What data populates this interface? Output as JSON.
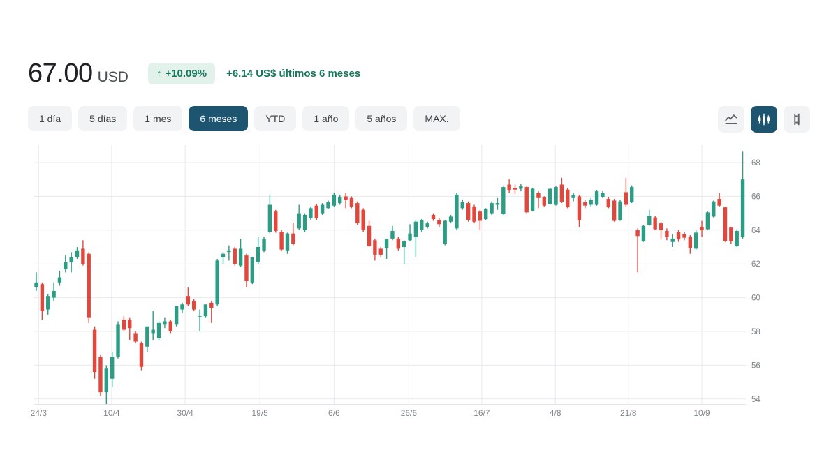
{
  "header": {
    "price": "67.00",
    "currency": "USD",
    "badge_arrow": "↑",
    "badge_change": "+10.09%",
    "change_text": "+6.14 US$ últimos 6 meses"
  },
  "range_tabs": [
    {
      "label": "1 día",
      "selected": false
    },
    {
      "label": "5 días",
      "selected": false
    },
    {
      "label": "1 mes",
      "selected": false
    },
    {
      "label": "6 meses",
      "selected": true
    },
    {
      "label": "YTD",
      "selected": false
    },
    {
      "label": "1 año",
      "selected": false
    },
    {
      "label": "5 años",
      "selected": false
    },
    {
      "label": "MÁX.",
      "selected": false
    }
  ],
  "chart_controls": [
    {
      "icon": "line-chart-icon",
      "selected": false
    },
    {
      "icon": "candlestick-chart-icon",
      "selected": true
    },
    {
      "icon": "ohlc-bars-icon",
      "selected": false
    }
  ],
  "colors": {
    "up": "#2d9c84",
    "down": "#e0483e",
    "grid": "#e8eaed",
    "axis_line": "#dadce0",
    "axis_text": "#80868b",
    "accent_selected": "#1d5470",
    "positive_text": "#16795c",
    "positive_bg": "#e3f1eb"
  },
  "chart_data": {
    "type": "candlestick",
    "unit": "USD",
    "period": "6 meses",
    "y_ticks": [
      54,
      56,
      58,
      60,
      62,
      64,
      66,
      68
    ],
    "y_range": [
      53.5,
      69.0
    ],
    "grid": true,
    "y_axis_position": "right",
    "x_labels": [
      {
        "label": "24/3",
        "index": 0.4
      },
      {
        "label": "10/4",
        "index": 12.9
      },
      {
        "label": "30/4",
        "index": 25.5
      },
      {
        "label": "19/5",
        "index": 38.3
      },
      {
        "label": "6/6",
        "index": 51.0
      },
      {
        "label": "26/6",
        "index": 63.8
      },
      {
        "label": "16/7",
        "index": 76.3
      },
      {
        "label": "4/8",
        "index": 88.9
      },
      {
        "label": "21/8",
        "index": 101.4
      },
      {
        "label": "10/9",
        "index": 114.0
      }
    ],
    "candles_format": [
      "open",
      "high",
      "low",
      "close"
    ],
    "candles": [
      [
        60.6,
        61.5,
        60.4,
        60.9
      ],
      [
        60.8,
        60.9,
        58.7,
        59.2
      ],
      [
        59.3,
        60.2,
        59.0,
        60.1
      ],
      [
        60.0,
        60.9,
        59.8,
        60.4
      ],
      [
        60.9,
        61.6,
        60.7,
        61.2
      ],
      [
        61.7,
        62.5,
        61.5,
        62.1
      ],
      [
        62.1,
        62.7,
        61.5,
        62.4
      ],
      [
        62.4,
        63.0,
        62.3,
        62.8
      ],
      [
        62.9,
        63.4,
        61.9,
        62.0
      ],
      [
        62.6,
        62.7,
        58.5,
        58.8
      ],
      [
        58.1,
        58.3,
        55.2,
        55.6
      ],
      [
        56.5,
        56.6,
        54.2,
        54.4
      ],
      [
        54.4,
        56.0,
        53.7,
        55.8
      ],
      [
        55.2,
        56.8,
        54.7,
        56.5
      ],
      [
        56.5,
        58.6,
        56.4,
        58.4
      ],
      [
        58.7,
        58.9,
        58.0,
        58.1
      ],
      [
        58.7,
        58.8,
        57.5,
        58.2
      ],
      [
        57.9,
        58.0,
        57.3,
        57.4
      ],
      [
        57.3,
        57.4,
        55.7,
        55.9
      ],
      [
        57.1,
        58.3,
        56.8,
        58.3
      ],
      [
        57.9,
        59.2,
        57.5,
        58.1
      ],
      [
        57.6,
        58.6,
        57.5,
        58.5
      ],
      [
        58.4,
        58.8,
        58.2,
        58.6
      ],
      [
        58.6,
        58.7,
        57.9,
        58.0
      ],
      [
        58.4,
        59.5,
        58.3,
        59.5
      ],
      [
        59.3,
        59.7,
        59.1,
        59.6
      ],
      [
        60.1,
        60.6,
        59.5,
        59.6
      ],
      [
        59.8,
        59.9,
        59.2,
        59.3
      ],
      [
        58.9,
        59.3,
        58.0,
        58.9
      ],
      [
        58.9,
        59.6,
        58.8,
        59.6
      ],
      [
        59.7,
        59.8,
        58.5,
        59.4
      ],
      [
        59.6,
        62.3,
        59.5,
        62.2
      ],
      [
        62.4,
        62.7,
        62.0,
        62.6
      ],
      [
        62.7,
        63.1,
        62.2,
        62.8
      ],
      [
        62.9,
        63.0,
        61.9,
        62.0
      ],
      [
        61.9,
        63.5,
        61.8,
        62.9
      ],
      [
        62.5,
        62.6,
        60.6,
        61.0
      ],
      [
        60.9,
        62.4,
        60.8,
        62.4
      ],
      [
        62.1,
        63.6,
        62.0,
        63.0
      ],
      [
        62.8,
        63.6,
        62.7,
        63.5
      ],
      [
        63.9,
        66.1,
        63.8,
        65.5
      ],
      [
        65.1,
        65.2,
        63.85,
        63.95
      ],
      [
        63.9,
        64.0,
        62.75,
        62.85
      ],
      [
        62.8,
        63.85,
        62.6,
        63.8
      ],
      [
        63.8,
        64.45,
        63.1,
        63.2
      ],
      [
        64.1,
        65.5,
        64.0,
        65.0
      ],
      [
        64.0,
        65.0,
        63.9,
        64.9
      ],
      [
        64.7,
        65.4,
        64.6,
        65.3
      ],
      [
        65.45,
        65.55,
        64.6,
        64.7
      ],
      [
        65.0,
        65.6,
        64.9,
        65.5
      ],
      [
        65.3,
        65.75,
        65.25,
        65.65
      ],
      [
        65.45,
        66.2,
        65.4,
        66.1
      ],
      [
        65.6,
        66.1,
        65.5,
        65.95
      ],
      [
        66.0,
        66.2,
        65.3,
        65.8
      ],
      [
        65.9,
        66.0,
        65.3,
        65.4
      ],
      [
        65.6,
        65.7,
        64.3,
        64.4
      ],
      [
        65.2,
        65.3,
        63.9,
        64.0
      ],
      [
        64.25,
        64.55,
        63.0,
        63.05
      ],
      [
        63.4,
        63.5,
        62.2,
        62.55
      ],
      [
        62.9,
        63.0,
        62.4,
        62.55
      ],
      [
        62.95,
        63.5,
        62.3,
        63.45
      ],
      [
        63.5,
        64.25,
        63.4,
        63.95
      ],
      [
        63.5,
        63.6,
        62.8,
        62.9
      ],
      [
        63.0,
        63.4,
        62.0,
        63.35
      ],
      [
        63.4,
        64.35,
        63.35,
        63.8
      ],
      [
        63.6,
        64.6,
        62.4,
        64.5
      ],
      [
        64.0,
        64.65,
        63.9,
        64.6
      ],
      [
        64.2,
        64.5,
        64.1,
        64.4
      ],
      [
        64.9,
        65.0,
        64.55,
        64.65
      ],
      [
        64.6,
        64.7,
        64.2,
        64.35
      ],
      [
        63.2,
        64.6,
        63.1,
        64.55
      ],
      [
        64.5,
        64.9,
        64.4,
        64.8
      ],
      [
        64.1,
        66.2,
        64.0,
        66.1
      ],
      [
        65.3,
        65.8,
        65.2,
        65.65
      ],
      [
        65.6,
        65.7,
        64.5,
        64.6
      ],
      [
        65.4,
        65.5,
        64.4,
        64.5
      ],
      [
        65.1,
        65.2,
        64.0,
        64.55
      ],
      [
        64.65,
        65.3,
        64.6,
        65.25
      ],
      [
        65.0,
        65.7,
        64.9,
        65.6
      ],
      [
        65.5,
        65.9,
        65.2,
        65.6
      ],
      [
        64.95,
        66.6,
        64.9,
        66.55
      ],
      [
        66.7,
        67.0,
        66.2,
        66.35
      ],
      [
        66.5,
        66.7,
        66.15,
        66.4
      ],
      [
        66.45,
        66.75,
        66.3,
        66.6
      ],
      [
        66.55,
        66.6,
        65.0,
        65.05
      ],
      [
        65.15,
        66.5,
        65.1,
        66.45
      ],
      [
        66.2,
        66.3,
        65.3,
        65.9
      ],
      [
        65.95,
        66.0,
        65.4,
        65.45
      ],
      [
        65.55,
        66.5,
        65.5,
        66.45
      ],
      [
        65.5,
        66.6,
        65.45,
        66.55
      ],
      [
        66.7,
        67.1,
        65.6,
        65.65
      ],
      [
        66.4,
        66.5,
        65.3,
        65.35
      ],
      [
        65.9,
        66.2,
        65.7,
        66.1
      ],
      [
        66.0,
        66.1,
        64.2,
        64.6
      ],
      [
        65.65,
        65.8,
        65.3,
        65.45
      ],
      [
        65.5,
        65.9,
        65.4,
        65.8
      ],
      [
        65.5,
        66.35,
        65.45,
        66.3
      ],
      [
        65.95,
        66.3,
        65.9,
        66.2
      ],
      [
        65.85,
        65.95,
        65.3,
        65.35
      ],
      [
        65.75,
        65.85,
        64.5,
        64.55
      ],
      [
        64.6,
        65.8,
        64.55,
        65.7
      ],
      [
        66.25,
        67.1,
        65.4,
        65.5
      ],
      [
        65.65,
        66.65,
        65.6,
        66.55
      ],
      [
        64.0,
        64.1,
        61.5,
        63.65
      ],
      [
        63.35,
        64.3,
        63.3,
        64.25
      ],
      [
        64.3,
        65.2,
        64.25,
        64.85
      ],
      [
        64.75,
        64.85,
        64.0,
        64.05
      ],
      [
        64.4,
        64.5,
        63.5,
        64.0
      ],
      [
        63.95,
        64.1,
        63.4,
        63.6
      ],
      [
        63.3,
        63.75,
        63.0,
        63.5
      ],
      [
        63.9,
        64.0,
        63.3,
        63.45
      ],
      [
        63.75,
        63.9,
        63.4,
        63.55
      ],
      [
        63.6,
        63.7,
        62.6,
        62.95
      ],
      [
        62.9,
        64.0,
        62.85,
        63.85
      ],
      [
        64.2,
        64.55,
        63.6,
        64.0
      ],
      [
        64.05,
        65.1,
        64.0,
        65.05
      ],
      [
        64.8,
        65.75,
        64.75,
        65.7
      ],
      [
        65.85,
        66.2,
        65.4,
        65.45
      ],
      [
        65.35,
        65.4,
        63.3,
        63.35
      ],
      [
        64.15,
        64.2,
        63.2,
        63.35
      ],
      [
        63.05,
        64.05,
        63.0,
        63.95
      ],
      [
        63.6,
        68.65,
        63.5,
        67.0
      ]
    ]
  }
}
